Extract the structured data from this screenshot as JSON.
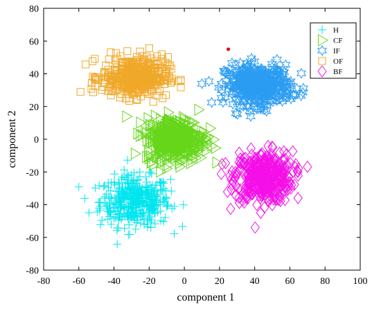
{
  "chart_data": {
    "type": "scatter",
    "title": "",
    "xlabel": "component 1",
    "ylabel": "component 2",
    "xlim": [
      -80,
      100
    ],
    "ylim": [
      -80,
      80
    ],
    "xticks": [
      -80,
      -60,
      -40,
      -20,
      0,
      20,
      40,
      60,
      80,
      100
    ],
    "yticks": [
      -80,
      -60,
      -40,
      -20,
      0,
      20,
      40,
      60,
      80
    ],
    "grid": false,
    "legend_position": "top-right",
    "series": [
      {
        "name": "H",
        "marker": "plus",
        "color": "#00E5EE",
        "center": [
          -28,
          -38
        ],
        "spread": [
          18,
          14
        ],
        "range_x": [
          -60,
          0
        ],
        "range_y": [
          -73,
          -8
        ],
        "count": 420
      },
      {
        "name": "CF",
        "marker": "triangle",
        "color": "#66D61A",
        "center": [
          -5,
          0
        ],
        "spread": [
          15,
          12
        ],
        "range_x": [
          -40,
          20
        ],
        "range_y": [
          -30,
          30
        ],
        "count": 420
      },
      {
        "name": "IF",
        "marker": "hexagram",
        "color": "#2B9CF2",
        "center": [
          42,
          33
        ],
        "spread": [
          17,
          11
        ],
        "range_x": [
          10,
          73
        ],
        "range_y": [
          10,
          58
        ],
        "count": 420
      },
      {
        "name": "OF",
        "marker": "square",
        "color": "#F0A82A",
        "center": [
          -28,
          38
        ],
        "spread": [
          17,
          11
        ],
        "range_x": [
          -68,
          -2
        ],
        "range_y": [
          10,
          64
        ],
        "count": 420
      },
      {
        "name": "BF",
        "marker": "diamond",
        "color": "#F50FE8",
        "center": [
          45,
          -23
        ],
        "spread": [
          15,
          14
        ],
        "range_x": [
          12,
          70
        ],
        "range_y": [
          -60,
          10
        ],
        "count": 420
      }
    ],
    "highlight_point": {
      "x": 25,
      "y": 55,
      "color": "#E00000"
    }
  }
}
